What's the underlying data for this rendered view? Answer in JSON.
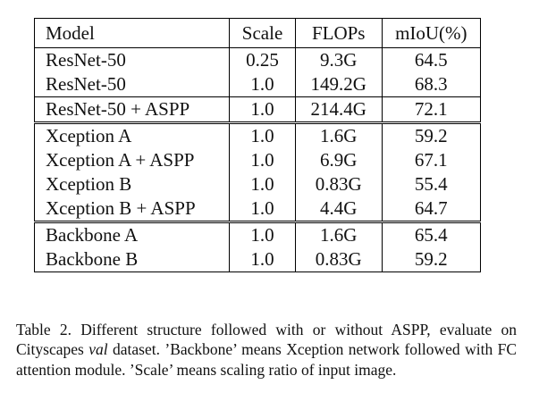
{
  "table": {
    "headers": [
      "Model",
      "Scale",
      "FLOPs",
      "mIoU(%)"
    ],
    "groups": [
      [
        [
          "ResNet-50",
          "0.25",
          "9.3G",
          "64.5"
        ],
        [
          "ResNet-50",
          "1.0",
          "149.2G",
          "68.3"
        ]
      ],
      [
        [
          "ResNet-50 + ASPP",
          "1.0",
          "214.4G",
          "72.1"
        ]
      ],
      [
        [
          "Xception A",
          "1.0",
          "1.6G",
          "59.2"
        ],
        [
          "Xception A + ASPP",
          "1.0",
          "6.9G",
          "67.1"
        ],
        [
          "Xception B",
          "1.0",
          "0.83G",
          "55.4"
        ],
        [
          "Xception B + ASPP",
          "1.0",
          "4.4G",
          "64.7"
        ]
      ],
      [
        [
          "Backbone A",
          "1.0",
          "1.6G",
          "65.4"
        ],
        [
          "Backbone B",
          "1.0",
          "0.83G",
          "59.2"
        ]
      ]
    ]
  },
  "caption": {
    "label": "Table 2.",
    "text_before_italic": " Different structure followed with or without ASPP, evaluate on Cityscapes ",
    "italic": "val",
    "text_after_italic": " dataset. ’Backbone’ means Xception network followed with FC attention module. ’Scale’ means scaling ratio of input image."
  }
}
